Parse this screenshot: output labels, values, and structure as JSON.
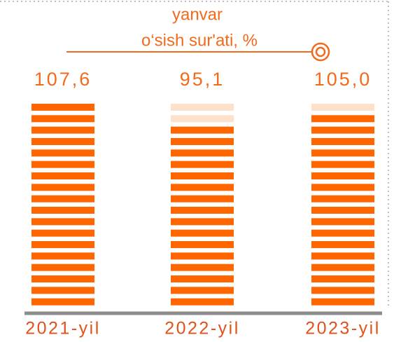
{
  "chart_data": {
    "type": "bar",
    "title": "yanvar",
    "subtitle": "o‘sish sur'ati, %",
    "categories": [
      "2021-yil",
      "2022-yil",
      "2023-yil"
    ],
    "values": [
      107.6,
      95.1,
      105.0
    ],
    "value_labels": [
      "107,6",
      "95,1",
      "105,0"
    ],
    "color": "#ff6600"
  }
}
